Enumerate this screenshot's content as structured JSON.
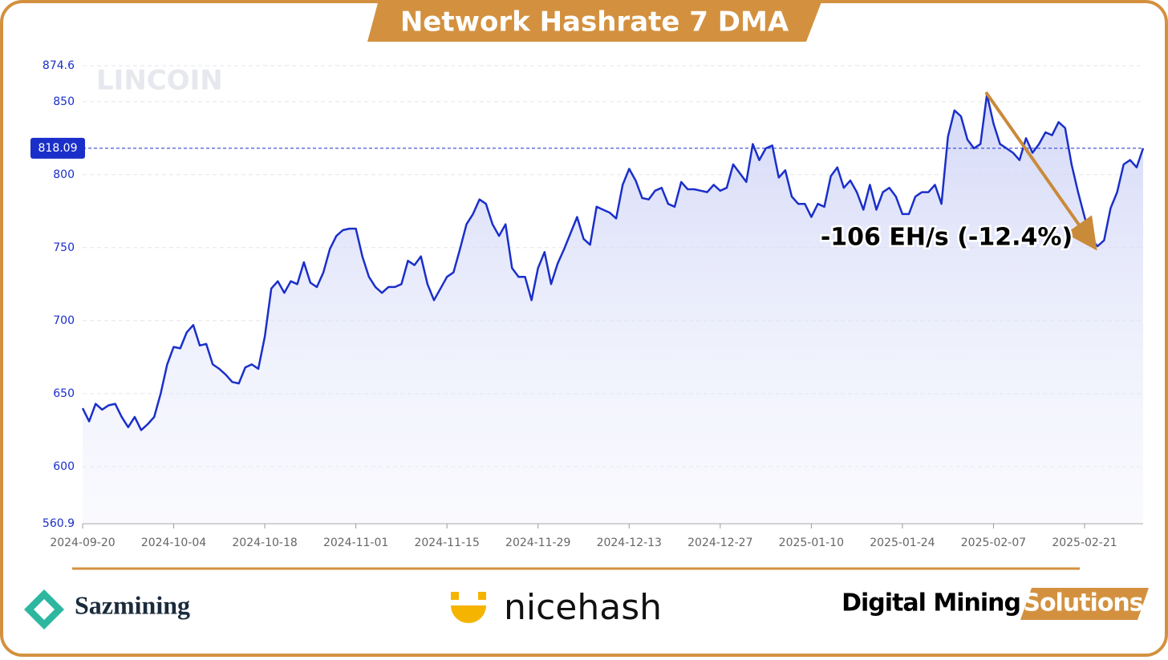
{
  "chart_data": {
    "type": "line",
    "title": "Network Hashrate 7 DMA",
    "watermark": "LINCOIN",
    "x": [
      "2024-09-20",
      "2024-09-21",
      "2024-09-22",
      "2024-09-23",
      "2024-09-24",
      "2024-09-25",
      "2024-09-26",
      "2024-09-27",
      "2024-09-28",
      "2024-09-29",
      "2024-09-30",
      "2024-10-01",
      "2024-10-02",
      "2024-10-03",
      "2024-10-04",
      "2024-10-05",
      "2024-10-06",
      "2024-10-07",
      "2024-10-08",
      "2024-10-09",
      "2024-10-10",
      "2024-10-11",
      "2024-10-12",
      "2024-10-13",
      "2024-10-14",
      "2024-10-15",
      "2024-10-16",
      "2024-10-17",
      "2024-10-18",
      "2024-10-19",
      "2024-10-20",
      "2024-10-21",
      "2024-10-22",
      "2024-10-23",
      "2024-10-24",
      "2024-10-25",
      "2024-10-26",
      "2024-10-27",
      "2024-10-28",
      "2024-10-29",
      "2024-10-30",
      "2024-10-31",
      "2024-11-01",
      "2024-11-02",
      "2024-11-03",
      "2024-11-04",
      "2024-11-05",
      "2024-11-06",
      "2024-11-07",
      "2024-11-08",
      "2024-11-09",
      "2024-11-10",
      "2024-11-11",
      "2024-11-12",
      "2024-11-13",
      "2024-11-14",
      "2024-11-15",
      "2024-11-16",
      "2024-11-17",
      "2024-11-18",
      "2024-11-19",
      "2024-11-20",
      "2024-11-21",
      "2024-11-22",
      "2024-11-23",
      "2024-11-24",
      "2024-11-25",
      "2024-11-26",
      "2024-11-27",
      "2024-11-28",
      "2024-11-29",
      "2024-11-30",
      "2024-12-01",
      "2024-12-02",
      "2024-12-03",
      "2024-12-04",
      "2024-12-05",
      "2024-12-06",
      "2024-12-07",
      "2024-12-08",
      "2024-12-09",
      "2024-12-10",
      "2024-12-11",
      "2024-12-12",
      "2024-12-13",
      "2024-12-14",
      "2024-12-15",
      "2024-12-16",
      "2024-12-17",
      "2024-12-18",
      "2024-12-19",
      "2024-12-20",
      "2024-12-21",
      "2024-12-22",
      "2024-12-23",
      "2024-12-24",
      "2024-12-25",
      "2024-12-26",
      "2024-12-27",
      "2024-12-28",
      "2024-12-29",
      "2024-12-30",
      "2024-12-31",
      "2025-01-01",
      "2025-01-02",
      "2025-01-03",
      "2025-01-04",
      "2025-01-05",
      "2025-01-06",
      "2025-01-07",
      "2025-01-08",
      "2025-01-09",
      "2025-01-10",
      "2025-01-11",
      "2025-01-12",
      "2025-01-13",
      "2025-01-14",
      "2025-01-15",
      "2025-01-16",
      "2025-01-17",
      "2025-01-18",
      "2025-01-19",
      "2025-01-20",
      "2025-01-21",
      "2025-01-22",
      "2025-01-23",
      "2025-01-24",
      "2025-01-25",
      "2025-01-26",
      "2025-01-27",
      "2025-01-28",
      "2025-01-29",
      "2025-01-30",
      "2025-01-31",
      "2025-02-01",
      "2025-02-02",
      "2025-02-03",
      "2025-02-04",
      "2025-02-05",
      "2025-02-06",
      "2025-02-07",
      "2025-02-08",
      "2025-02-09",
      "2025-02-10",
      "2025-02-11",
      "2025-02-12",
      "2025-02-13",
      "2025-02-14",
      "2025-02-15",
      "2025-02-16",
      "2025-02-17",
      "2025-02-18",
      "2025-02-19",
      "2025-02-20",
      "2025-02-21",
      "2025-02-22",
      "2025-02-23",
      "2025-02-24",
      "2025-02-25",
      "2025-02-26",
      "2025-02-27",
      "2025-02-28",
      "2025-03-01",
      "2025-03-02"
    ],
    "series": [
      {
        "color": "#1a2fc9",
        "values": [
          640,
          631,
          643,
          639,
          642,
          643,
          634,
          627,
          634,
          625,
          629,
          634,
          650,
          670,
          682,
          681,
          692,
          697,
          683,
          684,
          670,
          667,
          663,
          658,
          657,
          668,
          670,
          667,
          689,
          722,
          727,
          719,
          727,
          725,
          740,
          726,
          723,
          733,
          749,
          758,
          762,
          763,
          763,
          744,
          730,
          723,
          719,
          723,
          723,
          725,
          741,
          738,
          744,
          725,
          714,
          722,
          730,
          733,
          749,
          766,
          773,
          783,
          780,
          766,
          758,
          766,
          736,
          730,
          730,
          714,
          736,
          747,
          725,
          739,
          749,
          760,
          771,
          756,
          752,
          778,
          776,
          774,
          770,
          793,
          804,
          796,
          784,
          783,
          789,
          791,
          780,
          778,
          795,
          790,
          790,
          789,
          788,
          793,
          789,
          791,
          807,
          801,
          795,
          821,
          810,
          818,
          820,
          798,
          803,
          785,
          780,
          780,
          771,
          780,
          778,
          799,
          805,
          791,
          796,
          788,
          776,
          793,
          776,
          788,
          791,
          785,
          773,
          773,
          785,
          788,
          788,
          793,
          780,
          826,
          844,
          840,
          824,
          818,
          821,
          855,
          835,
          821,
          818,
          815,
          810,
          825,
          815,
          821,
          829,
          827,
          836,
          832,
          807,
          788,
          771,
          756,
          751,
          755,
          777,
          788,
          807,
          810,
          805,
          818.09
        ]
      }
    ],
    "xlim": [
      "2024-09-20",
      "2025-03-02"
    ],
    "xticks": [
      "2024-09-20",
      "2024-10-04",
      "2024-10-18",
      "2024-11-01",
      "2024-11-15",
      "2024-11-29",
      "2024-12-13",
      "2024-12-27",
      "2025-01-10",
      "2025-01-24",
      "2025-02-07",
      "2025-02-21"
    ],
    "ylim": [
      560.9,
      874.6
    ],
    "yticks": [
      560.9,
      600,
      650,
      700,
      750,
      800,
      850,
      874.6
    ],
    "current_value": 818.09,
    "annotation": "-106 EH/s (-12.4%)",
    "grid": true
  },
  "footer": {
    "logos": [
      "Sazmining",
      "nicehash",
      "Digital Mining",
      "Solutions"
    ]
  }
}
